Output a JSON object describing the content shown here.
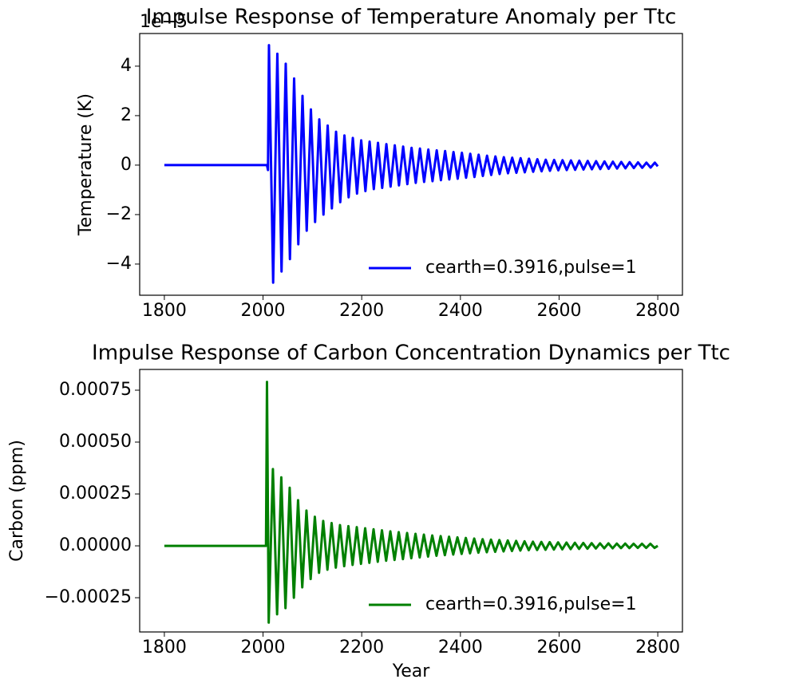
{
  "chart_data": [
    {
      "type": "line",
      "title": "Impulse Response of Temperature Anomaly per Ttc",
      "ylabel": "Temperature (K)",
      "offset_text": "1e−5",
      "x": [
        1800,
        2008,
        2010,
        2012,
        2020.5,
        2029,
        2037.5,
        2046,
        2054.5,
        2063,
        2071.5,
        2080,
        2088.5,
        2097,
        2105.5,
        2114,
        2122.5,
        2131,
        2139.5,
        2148,
        2156.5,
        2165,
        2173.5,
        2182,
        2190.5,
        2199,
        2207.5,
        2216,
        2224.5,
        2233,
        2241.5,
        2250,
        2258.5,
        2267,
        2275.5,
        2284,
        2292.5,
        2301,
        2309.5,
        2318,
        2326.5,
        2335,
        2343.5,
        2352,
        2360.5,
        2369,
        2377.5,
        2386,
        2394.5,
        2403,
        2411.5,
        2420,
        2428.5,
        2437,
        2445.5,
        2454,
        2462.5,
        2471,
        2479.5,
        2488,
        2496.5,
        2505,
        2513.5,
        2522,
        2530.5,
        2539,
        2547.5,
        2556,
        2564.5,
        2573,
        2581.5,
        2590,
        2598.5,
        2607,
        2615.5,
        2624,
        2632.5,
        2641,
        2649.5,
        2658,
        2666.5,
        2675,
        2683.5,
        2692,
        2700.5,
        2709,
        2717.5,
        2726,
        2734.5,
        2743,
        2751.5,
        2760,
        2768.5,
        2777,
        2785.5,
        2794,
        2800
      ],
      "series": [
        {
          "name": "cearth=0.3916,pulse=1",
          "color": "#0000ff",
          "values": [
            0,
            0,
            -0.2,
            4.85,
            -4.75,
            4.5,
            -4.3,
            4.1,
            -3.8,
            3.5,
            -3.2,
            2.8,
            -2.65,
            2.25,
            -2.3,
            1.85,
            -2.0,
            1.6,
            -1.75,
            1.35,
            -1.5,
            1.2,
            -1.3,
            1.1,
            -1.15,
            1.0,
            -1.05,
            0.95,
            -0.97,
            0.9,
            -0.92,
            0.85,
            -0.87,
            0.8,
            -0.82,
            0.75,
            -0.77,
            0.7,
            -0.72,
            0.67,
            -0.68,
            0.63,
            -0.65,
            0.6,
            -0.61,
            0.57,
            -0.58,
            0.53,
            -0.55,
            0.5,
            -0.51,
            0.46,
            -0.48,
            0.42,
            -0.44,
            0.38,
            -0.4,
            0.35,
            -0.36,
            0.32,
            -0.33,
            0.3,
            -0.31,
            0.28,
            -0.29,
            0.26,
            -0.27,
            0.24,
            -0.25,
            0.22,
            -0.23,
            0.21,
            -0.21,
            0.2,
            -0.2,
            0.19,
            -0.19,
            0.18,
            -0.18,
            0.17,
            -0.17,
            0.16,
            -0.16,
            0.15,
            -0.15,
            0.14,
            -0.14,
            0.13,
            -0.13,
            0.12,
            -0.12,
            0.11,
            -0.11,
            0.1,
            -0.1,
            0.1,
            -0.05
          ]
        }
      ],
      "xlim": [
        1750,
        2850
      ],
      "ylim": [
        -5.26,
        5.32
      ],
      "xticks": [
        1800,
        2000,
        2200,
        2400,
        2600,
        2800
      ],
      "yticks": [
        {
          "value": -4,
          "label": "−4"
        },
        {
          "value": -2,
          "label": "−2"
        },
        0,
        2,
        4
      ],
      "legend": "lower right"
    },
    {
      "type": "line",
      "title": "Impulse Response of Carbon Concentration Dynamics per Ttc",
      "ylabel": "Carbon (ppm)",
      "xlabel": "Year",
      "x": [
        1800,
        2006,
        2008,
        2011.5,
        2020,
        2028.5,
        2037,
        2045.5,
        2054,
        2062.5,
        2071,
        2079.5,
        2088,
        2096.5,
        2105,
        2113.5,
        2122,
        2130.5,
        2139,
        2147.5,
        2156,
        2164.5,
        2173,
        2181.5,
        2190,
        2198.5,
        2207,
        2215.5,
        2224,
        2232.5,
        2241,
        2249.5,
        2258,
        2266.5,
        2275,
        2283.5,
        2292,
        2300.5,
        2309,
        2317.5,
        2326,
        2334.5,
        2343,
        2351.5,
        2360,
        2368.5,
        2377,
        2385.5,
        2394,
        2402.5,
        2411,
        2419.5,
        2428,
        2436.5,
        2445,
        2453.5,
        2462,
        2470.5,
        2479,
        2487.5,
        2496,
        2504.5,
        2513,
        2521.5,
        2530,
        2538.5,
        2547,
        2555.5,
        2564,
        2572.5,
        2581,
        2589.5,
        2598,
        2606.5,
        2615,
        2623.5,
        2632,
        2640.5,
        2649,
        2657.5,
        2666,
        2674.5,
        2683,
        2691.5,
        2700,
        2708.5,
        2717,
        2725.5,
        2734,
        2742.5,
        2751,
        2759.5,
        2768,
        2776.5,
        2785,
        2793.5,
        2800
      ],
      "series": [
        {
          "name": "cearth=0.3916,pulse=1",
          "color": "#008000",
          "values": [
            0,
            0,
            0.00079,
            -0.00037,
            0.00037,
            -0.00033,
            0.00033,
            -0.0003,
            0.00028,
            -0.00025,
            0.00022,
            -0.0002,
            0.00017,
            -0.00016,
            0.00014,
            -0.00013,
            0.00012,
            -0.000115,
            0.00011,
            -0.000105,
            0.0001,
            -9.8e-05,
            9.5e-05,
            -9.2e-05,
            9e-05,
            -8.7e-05,
            8.5e-05,
            -8.2e-05,
            8e-05,
            -7.7e-05,
            7.5e-05,
            -7.2e-05,
            7e-05,
            -6.8e-05,
            6.6e-05,
            -6.4e-05,
            6.2e-05,
            -6e-05,
            5.8e-05,
            -5.6e-05,
            5.4e-05,
            -5.2e-05,
            5e-05,
            -4.8e-05,
            4.7e-05,
            -4.5e-05,
            4.4e-05,
            -4.2e-05,
            4.1e-05,
            -3.9e-05,
            3.8e-05,
            -3.6e-05,
            3.5e-05,
            -3.3e-05,
            3.2e-05,
            -3.1e-05,
            3e-05,
            -2.9e-05,
            2.8e-05,
            -2.7e-05,
            2.6e-05,
            -2.5e-05,
            2.4e-05,
            -2.3e-05,
            2.2e-05,
            -2.1e-05,
            2e-05,
            -2e-05,
            1.9e-05,
            -1.9e-05,
            1.8e-05,
            -1.8e-05,
            1.7e-05,
            -1.7e-05,
            1.6e-05,
            -1.6e-05,
            1.5e-05,
            -1.5e-05,
            1.4e-05,
            -1.4e-05,
            1.3e-05,
            -1.3e-05,
            1.2e-05,
            -1.2e-05,
            1.2e-05,
            -1.2e-05,
            1.1e-05,
            -1.1e-05,
            1.1e-05,
            -1.1e-05,
            1e-05,
            -1e-05,
            1e-05,
            -1e-05,
            1e-05,
            -1e-05,
            0
          ]
        }
      ],
      "xlim": [
        1750,
        2850
      ],
      "ylim": [
        -0.000415,
        0.00085
      ],
      "xticks": [
        1800,
        2000,
        2200,
        2400,
        2600,
        2800
      ],
      "yticks": [
        {
          "value": -0.00025,
          "label": "−0.00025"
        },
        {
          "value": 0,
          "label": "0.00000"
        },
        {
          "value": 0.00025,
          "label": "0.00025"
        },
        {
          "value": 0.0005,
          "label": "0.00050"
        },
        {
          "value": 0.00075,
          "label": "0.00075"
        }
      ],
      "legend": "lower right"
    }
  ]
}
